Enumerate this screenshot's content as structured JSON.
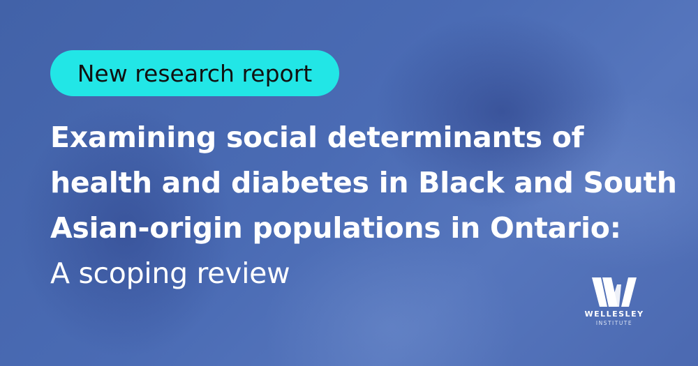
{
  "badge": {
    "label": "New research report",
    "color": "#22e6e6"
  },
  "title": {
    "lines": [
      "Examining social determinants of",
      "health and diabetes in Black and South",
      "Asian-origin populations in Ontario:"
    ],
    "subtitle": "A scoping review"
  },
  "logo": {
    "name": "WELLESLEY",
    "sub": "INSTITUTE",
    "glyph": "W"
  },
  "colors": {
    "background": "#4a6bb4",
    "text": "#ffffff"
  }
}
